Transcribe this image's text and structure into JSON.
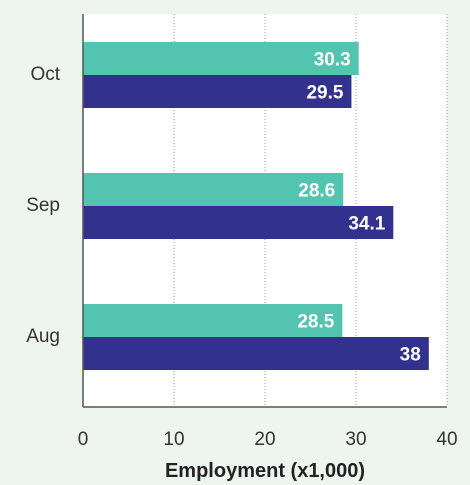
{
  "chart_data": {
    "type": "bar",
    "orientation": "horizontal",
    "title": "",
    "xlabel": "Employment (x1,000)",
    "ylabel": "",
    "xlim": [
      0,
      40
    ],
    "xticks": [
      0,
      10,
      20,
      30,
      40
    ],
    "grid": "vertical dotted",
    "legend": "none",
    "categories": [
      "Oct",
      "Sep",
      "Aug"
    ],
    "series": [
      {
        "color": "#52c4b0",
        "values": [
          30.3,
          28.6,
          28.5
        ],
        "labels": [
          "30.3",
          "28.6",
          "28.5"
        ]
      },
      {
        "color": "#33318e",
        "values": [
          29.5,
          34.1,
          38
        ],
        "labels": [
          "29.5",
          "34.1",
          "38"
        ]
      }
    ]
  }
}
